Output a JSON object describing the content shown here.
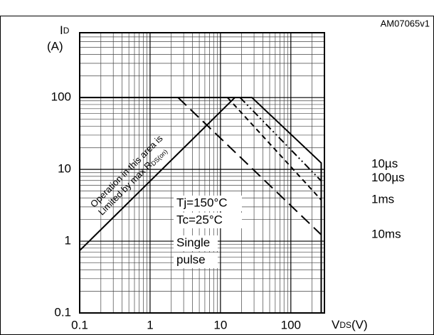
{
  "chart_data": {
    "type": "line",
    "code": "AM07065v1",
    "y_label": {
      "symbol": "I",
      "sub": "D",
      "unit": "(A)"
    },
    "x_label": {
      "symbol": "V",
      "sub": "DS",
      "unit": "(V)"
    },
    "log_x": true,
    "log_y": true,
    "grid": true,
    "minor_grid": true,
    "xlim": [
      0.1,
      300
    ],
    "ylim": [
      0.1,
      800
    ],
    "xticks": [
      0.1,
      1,
      10,
      100
    ],
    "yticks": [
      0.1,
      1,
      10,
      100
    ],
    "series": [
      {
        "name": "10µs",
        "color": "#000000",
        "style": "solid",
        "x": [
          0.1,
          28,
          270,
          270
        ],
        "values": [
          100,
          100,
          12.3,
          0.1
        ]
      },
      {
        "name": "100µs",
        "color": "#000000",
        "style": "dashdot",
        "x": [
          19,
          270
        ],
        "values": [
          100,
          6.9
        ]
      },
      {
        "name": "1ms",
        "color": "#000000",
        "style": "dashed",
        "x": [
          12.6,
          270
        ],
        "values": [
          100,
          3.75
        ]
      },
      {
        "name": "10ms",
        "color": "#000000",
        "style": "longdash",
        "x": [
          2.5,
          270
        ],
        "values": [
          100,
          1.23
        ]
      }
    ],
    "limit_line": {
      "color": "#000000",
      "x": [
        0.1,
        16
      ],
      "values": [
        0.74,
        100
      ]
    },
    "limit_text": {
      "line1": "Operation in this area is",
      "line2": "Limited by max R",
      "sub": "DS(on)"
    },
    "conditions": [
      "Tj=150°C",
      "Tc=25°C",
      "Single",
      "pulse"
    ]
  }
}
